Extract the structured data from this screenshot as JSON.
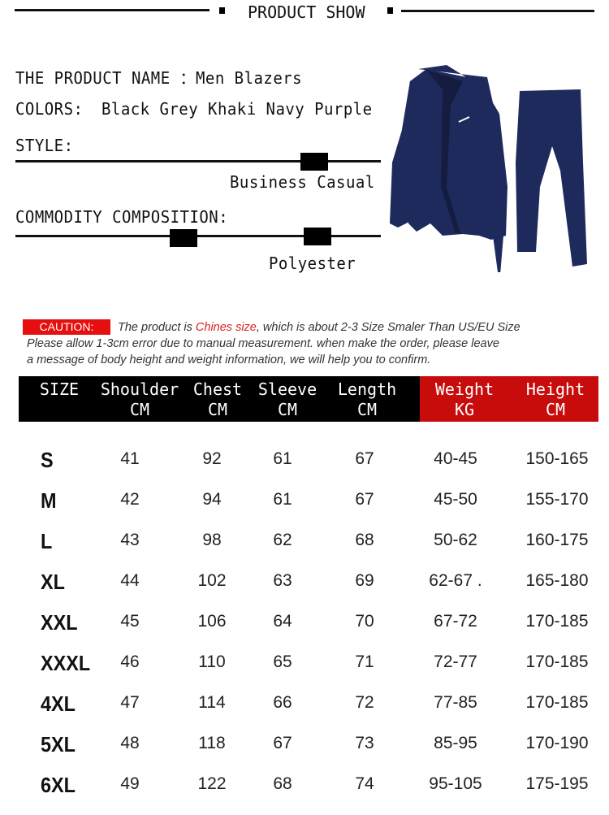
{
  "header": {
    "title": "PRODUCT SHOW"
  },
  "product": {
    "name_line": "THE PRODUCT NAME ：Men Blazers",
    "colors_label": "COLORS:",
    "colors": "Black Grey Khaki Navy Purple",
    "style_label": "STYLE:",
    "style_value": "Business Casual",
    "composition_label": "COMMODITY COMPOSITION:",
    "composition_value": "Polyester",
    "image": "navy-suit-blazer-and-pants"
  },
  "caution": {
    "badge": "CAUTION:",
    "line1_pre": "The product is ",
    "line1_red": "Chines size",
    "line1_post": ", which is about 2-3 Size Smaler Than  US/EU Size",
    "line2": "Please allow 1-3cm error due to manual measurement. when make the order, please leave",
    "line3": "a message of body height and weight information, we will help you to confirm."
  },
  "colors": {
    "accent_red": "#e60f0f",
    "header_red": "#c80c0c",
    "suit_navy": "#1e2a5c"
  },
  "table": {
    "headers": [
      {
        "l1": "SIZE",
        "l2": ""
      },
      {
        "l1": "Shoulder",
        "l2": "CM"
      },
      {
        "l1": "Chest",
        "l2": "CM"
      },
      {
        "l1": "Sleeve",
        "l2": "CM"
      },
      {
        "l1": "Length",
        "l2": "CM"
      },
      {
        "l1": "Weight",
        "l2": "KG"
      },
      {
        "l1": "Height",
        "l2": "CM"
      }
    ],
    "rows": [
      [
        "S",
        "41",
        "92",
        "61",
        "67",
        "40-45",
        "150-165"
      ],
      [
        "M",
        "42",
        "94",
        "61",
        "67",
        "45-50",
        "155-170"
      ],
      [
        "L",
        "43",
        "98",
        "62",
        "68",
        "50-62",
        "160-175"
      ],
      [
        "XL",
        "44",
        "102",
        "63",
        "69",
        "62-67 .",
        "165-180"
      ],
      [
        "XXL",
        "45",
        "106",
        "64",
        "70",
        "67-72",
        "170-185"
      ],
      [
        "XXXL",
        "46",
        "110",
        "65",
        "71",
        "72-77",
        "170-185"
      ],
      [
        "4XL",
        "47",
        "114",
        "66",
        "72",
        "77-85",
        "170-185"
      ],
      [
        "5XL",
        "48",
        "118",
        "67",
        "73",
        "85-95",
        "170-190"
      ],
      [
        "6XL",
        "49",
        "122",
        "68",
        "74",
        "95-105",
        "175-195"
      ]
    ]
  }
}
